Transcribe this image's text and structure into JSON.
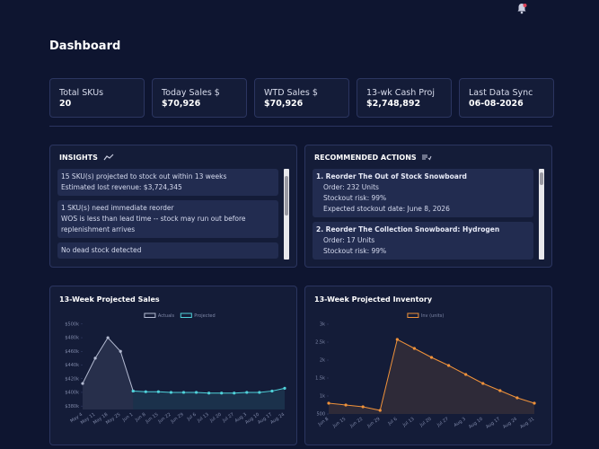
{
  "header": {
    "title": "Dashboard"
  },
  "kpis": [
    {
      "label": "Total SKUs",
      "value": "20"
    },
    {
      "label": "Today Sales $",
      "value": "$70,926"
    },
    {
      "label": "WTD Sales $",
      "value": "$70,926"
    },
    {
      "label": "13-wk Cash Proj",
      "value": "$2,748,892"
    },
    {
      "label": "Last Data Sync",
      "value": "06-08-2026"
    }
  ],
  "insights": {
    "title": "INSIGHTS",
    "items": [
      {
        "title": "15 SKU(s) projected to stock out within 13 weeks",
        "detail": "Estimated lost revenue: $3,724,345"
      },
      {
        "title": "1 SKU(s) need immediate reorder",
        "detail": "WOS is less than lead time -- stock may run out before replenishment arrives"
      },
      {
        "title": "No dead stock detected"
      }
    ]
  },
  "actions": {
    "title": "RECOMMENDED ACTIONS",
    "items": [
      {
        "title": "1. Reorder The Out of Stock Snowboard",
        "lines": [
          "Order: 232 Units",
          "Stockout risk: 99%",
          "Expected stockout date: June 8, 2026"
        ]
      },
      {
        "title": "2. Reorder The Collection Snowboard: Hydrogen",
        "lines": [
          "Order: 17 Units",
          "Stockout risk: 99%"
        ]
      }
    ]
  },
  "chart_data": [
    {
      "type": "area",
      "title": "13-Week Projected Sales",
      "categories": [
        "May 4",
        "May 11",
        "May 18",
        "May 25",
        "Jun 1",
        "Jun 8",
        "Jun 15",
        "Jun 22",
        "Jun 29",
        "Jul 6",
        "Jul 13",
        "Jul 20",
        "Jul 27",
        "Aug 3",
        "Aug 10",
        "Aug 17",
        "Aug 24"
      ],
      "series": [
        {
          "name": "Actuals",
          "color": "#b4bbd2",
          "values": [
            413,
            450,
            480,
            460,
            402,
            null,
            null,
            null,
            null,
            null,
            null,
            null,
            null,
            null,
            null,
            null,
            null
          ]
        },
        {
          "name": "Projected",
          "color": "#4fd1d9",
          "values": [
            null,
            null,
            null,
            null,
            402,
            401,
            401,
            400,
            400,
            400,
            399,
            399,
            399,
            400,
            400,
            402,
            406
          ]
        }
      ],
      "ylim": [
        375,
        505
      ],
      "yticks": [
        {
          "value": 380,
          "label": "$380k"
        },
        {
          "value": 400,
          "label": "$400k"
        },
        {
          "value": 420,
          "label": "$420k"
        },
        {
          "value": 440,
          "label": "$440k"
        },
        {
          "value": 460,
          "label": "$460k"
        },
        {
          "value": 480,
          "label": "$480k"
        },
        {
          "value": 500,
          "label": "$500k"
        }
      ]
    },
    {
      "type": "area",
      "title": "13-Week Projected Inventory",
      "categories": [
        "Jun 8",
        "Jun 15",
        "Jun 22",
        "Jun 29",
        "Jul 6",
        "Jul 13",
        "Jul 20",
        "Jul 27",
        "Aug 3",
        "Aug 10",
        "Aug 17",
        "Aug 24",
        "Aug 31"
      ],
      "series": [
        {
          "name": "Inv (units)",
          "color": "#f0923a",
          "values": [
            800,
            750,
            700,
            600,
            2575,
            2325,
            2075,
            1850,
            1600,
            1350,
            1150,
            950,
            800
          ]
        }
      ],
      "ylim": [
        500,
        3000
      ],
      "yticks": [
        500,
        {
          "value": 1000,
          "label": "1k"
        },
        {
          "value": 1500,
          "label": "1.5k"
        },
        {
          "value": 2000,
          "label": "2k"
        },
        {
          "value": 2500,
          "label": "2.5k"
        },
        {
          "value": 3000,
          "label": "3k"
        }
      ]
    }
  ]
}
